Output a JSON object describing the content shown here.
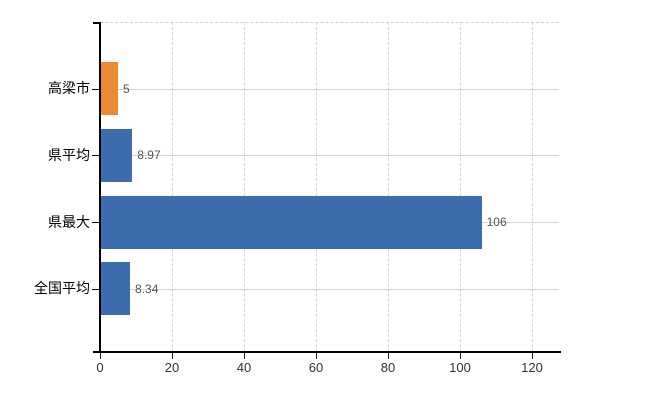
{
  "chart_data": {
    "type": "bar",
    "orientation": "horizontal",
    "title": "",
    "xlabel": "",
    "ylabel": "",
    "categories": [
      "高梁市",
      "県平均",
      "県最大",
      "全国平均"
    ],
    "values": [
      5,
      8.97,
      106,
      8.34
    ],
    "value_labels": [
      "5",
      "8.97",
      "106",
      "8.34"
    ],
    "bar_colors": [
      "#EC8A33",
      "#3C6CAE",
      "#3C6CAE",
      "#3C6CAE"
    ],
    "xlim": [
      0,
      127.5
    ],
    "xticks": [
      0,
      20,
      40,
      60,
      80,
      100,
      120
    ],
    "xtick_labels": [
      "0",
      "20",
      "40",
      "60",
      "80",
      "100",
      "120"
    ],
    "grid": true,
    "legend": false
  },
  "colors": {
    "bar_blue": "#3C6CAE",
    "bar_orange": "#EC8A33",
    "axis": "#000000",
    "gridline": "#d4d4d4",
    "background": "#ffffff",
    "tick_label": "#333333",
    "value_label": "#555555"
  }
}
